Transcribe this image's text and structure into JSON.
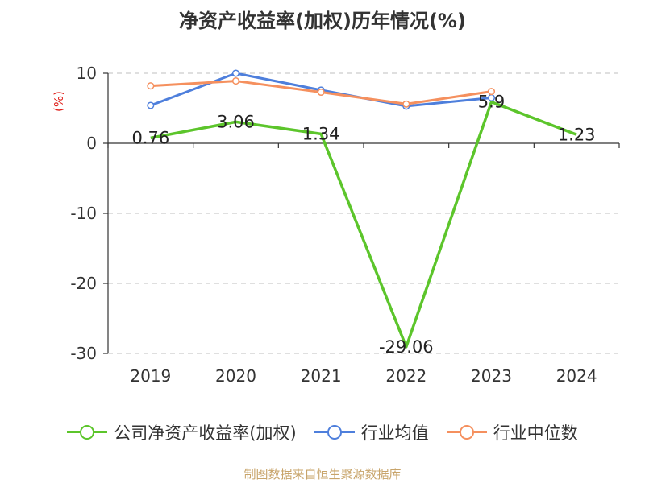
{
  "chart_data": {
    "type": "line",
    "title": "净资产收益率(加权)历年情况(%)",
    "ylabel": "(%)",
    "xlabel": "",
    "categories": [
      "2019",
      "2020",
      "2021",
      "2022",
      "2023",
      "2024"
    ],
    "ylim": [
      -30,
      10
    ],
    "yticks": [
      10,
      0,
      -10,
      -20,
      -30
    ],
    "grid": true,
    "legend_position": "bottom",
    "series": [
      {
        "name": "公司净资产收益率(加权)",
        "color": "#5cc52b",
        "values": [
          0.76,
          3.06,
          1.34,
          -29.06,
          5.9,
          1.23
        ],
        "labels": [
          "0.76",
          "3.06",
          "1.34",
          "-29.06",
          "5.9",
          "1.23"
        ]
      },
      {
        "name": "行业均值",
        "color": "#4e7fdc",
        "values": [
          5.4,
          10.0,
          7.6,
          5.3,
          6.5,
          null
        ]
      },
      {
        "name": "行业中位数",
        "color": "#f5905e",
        "values": [
          8.2,
          8.9,
          7.3,
          5.6,
          7.4,
          null
        ]
      }
    ]
  },
  "footer": {
    "source": "制图数据来自恒生聚源数据库"
  }
}
